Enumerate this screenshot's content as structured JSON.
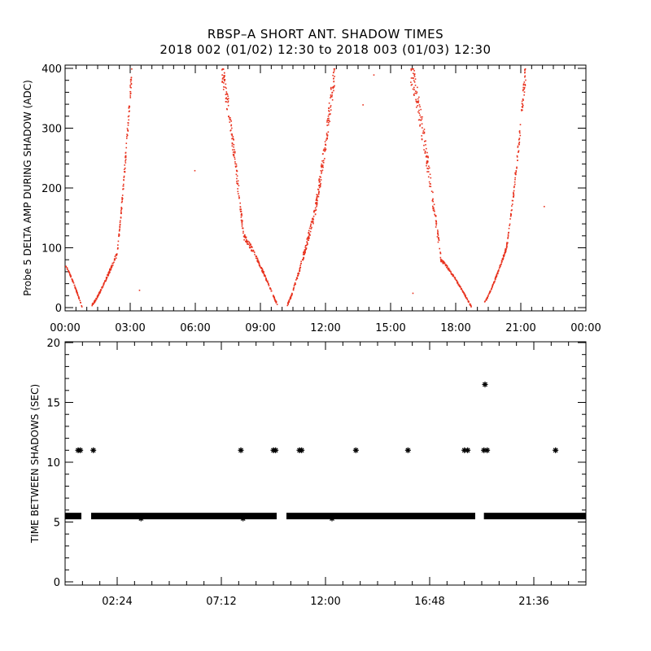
{
  "header": {
    "title_line1": "RBSP–A SHORT ANT. SHADOW TIMES",
    "title_line2": "2018 002 (01/02) 12:30 to 2018 003 (01/03) 12:30"
  },
  "colors": {
    "amp_points": "#e8321e",
    "time_points": "#000000",
    "axis": "#000000"
  },
  "chart_data": [
    {
      "type": "scatter",
      "name": "amplitude-panel",
      "ylabel": "Probe 5 DELTA AMP DURING SHADOW (ADC)",
      "xlabel": "",
      "xlim_hours": [
        0,
        24
      ],
      "ylim": [
        0,
        400
      ],
      "xticks": [
        "00:00",
        "03:00",
        "06:00",
        "09:00",
        "12:00",
        "15:00",
        "18:00",
        "21:00",
        "00:00"
      ],
      "yticks": [
        "0",
        "100",
        "200",
        "300",
        "400"
      ],
      "segments": [
        {
          "t0": 0.0,
          "t1": 0.75,
          "y0": 70,
          "y1": 2,
          "spread": 0.08,
          "n": 70
        },
        {
          "t0": 1.2,
          "t1": 2.35,
          "y0": 5,
          "y1": 90,
          "spread": 0.15,
          "n": 120
        },
        {
          "t0": 2.35,
          "t1": 3.05,
          "y0": 90,
          "y1": 400,
          "spread": 0.12,
          "n": 110
        },
        {
          "t0": 7.2,
          "t1": 8.2,
          "y0": 400,
          "y1": 120,
          "spread": 0.2,
          "n": 140
        },
        {
          "t0": 8.2,
          "t1": 9.75,
          "y0": 120,
          "y1": 5,
          "spread": 0.15,
          "n": 140
        },
        {
          "t0": 10.2,
          "t1": 11.4,
          "y0": 5,
          "y1": 150,
          "spread": 0.2,
          "n": 130
        },
        {
          "t0": 11.4,
          "t1": 12.4,
          "y0": 150,
          "y1": 400,
          "spread": 0.2,
          "n": 150
        },
        {
          "t0": 15.9,
          "t1": 17.3,
          "y0": 400,
          "y1": 80,
          "spread": 0.25,
          "n": 160
        },
        {
          "t0": 17.3,
          "t1": 18.7,
          "y0": 80,
          "y1": 2,
          "spread": 0.1,
          "n": 120
        },
        {
          "t0": 19.3,
          "t1": 20.3,
          "y0": 10,
          "y1": 100,
          "spread": 0.1,
          "n": 110
        },
        {
          "t0": 20.3,
          "t1": 21.2,
          "y0": 100,
          "y1": 400,
          "spread": 0.15,
          "n": 110
        }
      ],
      "outliers": [
        [
          5.95,
          230
        ],
        [
          13.7,
          340
        ],
        [
          14.2,
          390
        ],
        [
          22.05,
          170
        ],
        [
          3.4,
          30
        ],
        [
          16.0,
          25
        ]
      ]
    },
    {
      "type": "scatter",
      "name": "time-between-panel",
      "ylabel": "TIME BETWEEN SHADOWS (SEC)",
      "xlabel": "",
      "xlim_hours": [
        0,
        24
      ],
      "ylim": [
        0,
        20
      ],
      "xticks": [
        "02:24",
        "07:12",
        "12:00",
        "16:48",
        "21:36"
      ],
      "yticks": [
        "0",
        "5",
        "10",
        "15",
        "20"
      ],
      "baseline": 5.5,
      "baseline_ranges": [
        [
          0.0,
          0.75
        ],
        [
          1.2,
          9.75
        ],
        [
          10.2,
          18.9
        ],
        [
          19.3,
          24.0
        ]
      ],
      "points": [
        [
          0.6,
          11.0
        ],
        [
          0.7,
          11.0
        ],
        [
          1.3,
          11.0
        ],
        [
          8.1,
          11.0
        ],
        [
          9.6,
          11.0
        ],
        [
          9.7,
          11.0
        ],
        [
          10.8,
          11.0
        ],
        [
          10.9,
          11.0
        ],
        [
          13.4,
          11.0
        ],
        [
          15.8,
          11.0
        ],
        [
          18.4,
          11.0
        ],
        [
          18.55,
          11.0
        ],
        [
          19.3,
          11.0
        ],
        [
          19.45,
          11.0
        ],
        [
          19.35,
          16.5
        ],
        [
          22.6,
          11.0
        ],
        [
          3.5,
          5.3
        ],
        [
          8.2,
          5.3
        ],
        [
          12.3,
          5.3
        ]
      ]
    }
  ]
}
